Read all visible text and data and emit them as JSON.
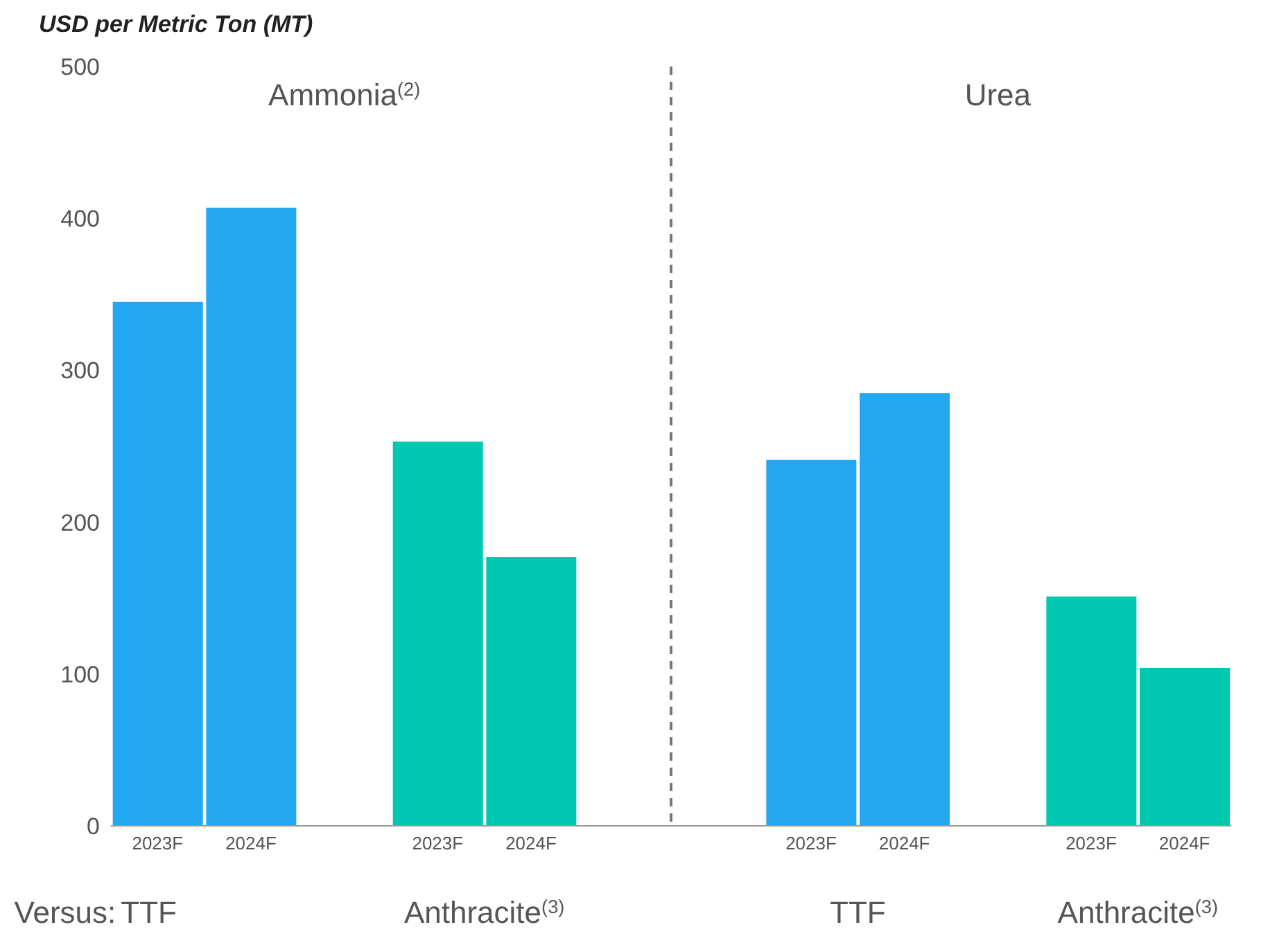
{
  "chart_data": {
    "type": "bar",
    "ylabel": "USD per Metric Ton (MT)",
    "categories": [
      "2023F",
      "2024F",
      null,
      "2023F",
      "2024F",
      null,
      null,
      "2023F",
      "2024F",
      null,
      "2023F",
      "2024F"
    ],
    "values": [
      345,
      407,
      null,
      253,
      177,
      null,
      null,
      241,
      285,
      null,
      151,
      104
    ],
    "colors": [
      "#23a7f0",
      "#23a7f0",
      null,
      "#00c8b0",
      "#00c8b0",
      null,
      null,
      "#23a7f0",
      "#23a7f0",
      null,
      "#00c8b0",
      "#00c8b0"
    ],
    "ylim": [
      0,
      500
    ],
    "yticks": [
      0,
      100,
      200,
      300,
      400,
      500
    ],
    "grid": false,
    "legend": false,
    "annotations": [
      "Ammonia$^{(2)}$",
      "Urea",
      "Versus:",
      "TTF",
      "Anthracite$^{(3)}$",
      "TTF",
      "Anthracite$^{(3)}$"
    ]
  }
}
